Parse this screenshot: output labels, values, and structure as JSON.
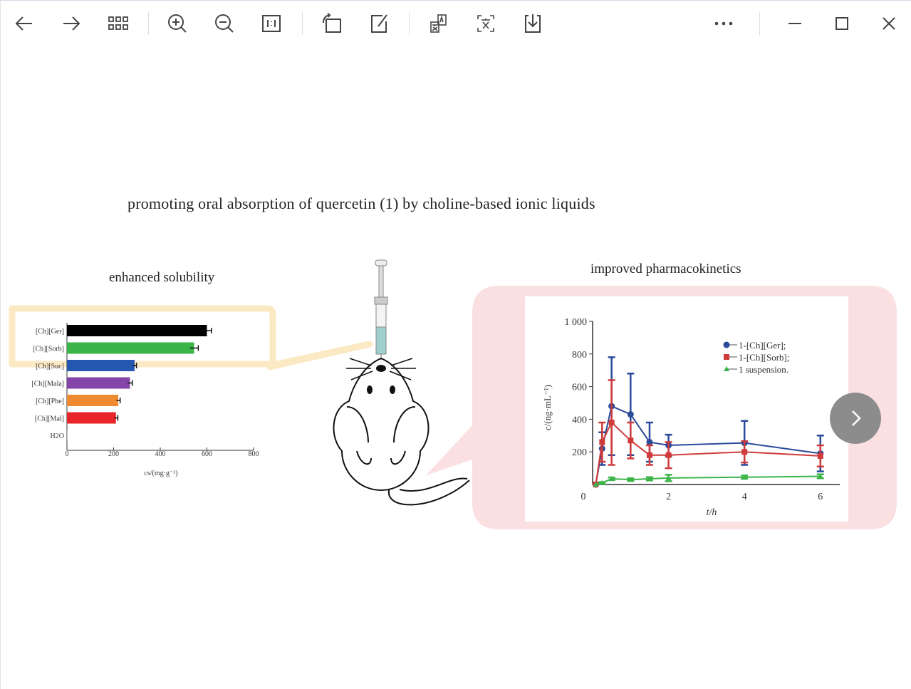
{
  "toolbar": {
    "buttons": [
      "back",
      "forward",
      "thumbnails",
      "zoom-in",
      "zoom-out",
      "actual-size",
      "rotate",
      "edit",
      "translate",
      "ocr-text",
      "save"
    ],
    "more": "more",
    "window": [
      "minimize",
      "maximize",
      "close"
    ]
  },
  "figure": {
    "title": "promoting oral absorption of quercetin (1) by choline-based ionic liquids",
    "left_heading": "enhanced solubility",
    "right_heading": "improved pharmacokinetics"
  },
  "colors": {
    "callout_yellow": "#fbe9c4",
    "callout_pink": "#fbe0e2",
    "next_button": "#8c8c8c"
  },
  "chart_data": [
    {
      "type": "bar",
      "orientation": "horizontal",
      "categories": [
        "[Ch][Ger]",
        "[Ch][Sorb]",
        "[Ch][Suc]",
        "[Ch][Mala]",
        "[Ch][Phe]",
        "[Ch][Mal]",
        "H2O"
      ],
      "values": [
        600,
        545,
        290,
        270,
        220,
        210,
        2
      ],
      "errors": [
        20,
        18,
        8,
        10,
        8,
        8,
        0
      ],
      "colors": [
        "#000000",
        "#3cb548",
        "#2457b0",
        "#8444a8",
        "#f08a30",
        "#e8262a",
        "#999999"
      ],
      "xlabel": "cs/(mg·g⁻¹)",
      "xlim": [
        0,
        800
      ],
      "xticks": [
        "0",
        "200",
        "400",
        "600",
        "800"
      ]
    },
    {
      "type": "line",
      "x": [
        0.083,
        0.25,
        0.5,
        1,
        1.5,
        2,
        4,
        6
      ],
      "series": [
        {
          "name": "1-[Ch][Ger];",
          "color": "#2a4a9a",
          "marker": "circle",
          "values": [
            0,
            220,
            480,
            430,
            260,
            240,
            255,
            190
          ],
          "errors": [
            0,
            100,
            300,
            250,
            120,
            65,
            135,
            110
          ]
        },
        {
          "name": "1-[Ch][Sorb];",
          "color": "#d03a3a",
          "marker": "square",
          "values": [
            0,
            260,
            380,
            270,
            180,
            180,
            200,
            175
          ],
          "errors": [
            0,
            120,
            260,
            110,
            60,
            80,
            65,
            65
          ]
        },
        {
          "name": "1 suspension.",
          "color": "#3cb548",
          "marker": "triangle",
          "values": [
            0,
            10,
            35,
            30,
            35,
            40,
            45,
            50
          ],
          "errors": [
            0,
            5,
            8,
            8,
            10,
            20,
            10,
            12
          ]
        }
      ],
      "xlabel": "t/h",
      "ylabel": "c/(ng·mL⁻¹)",
      "xlim": [
        0,
        6.3
      ],
      "ylim": [
        0,
        1000
      ],
      "xticks": [
        "0",
        "2",
        "4",
        "6"
      ],
      "yticks": [
        "200",
        "400",
        "600",
        "800",
        "1 000"
      ],
      "legend": "top-right"
    }
  ]
}
